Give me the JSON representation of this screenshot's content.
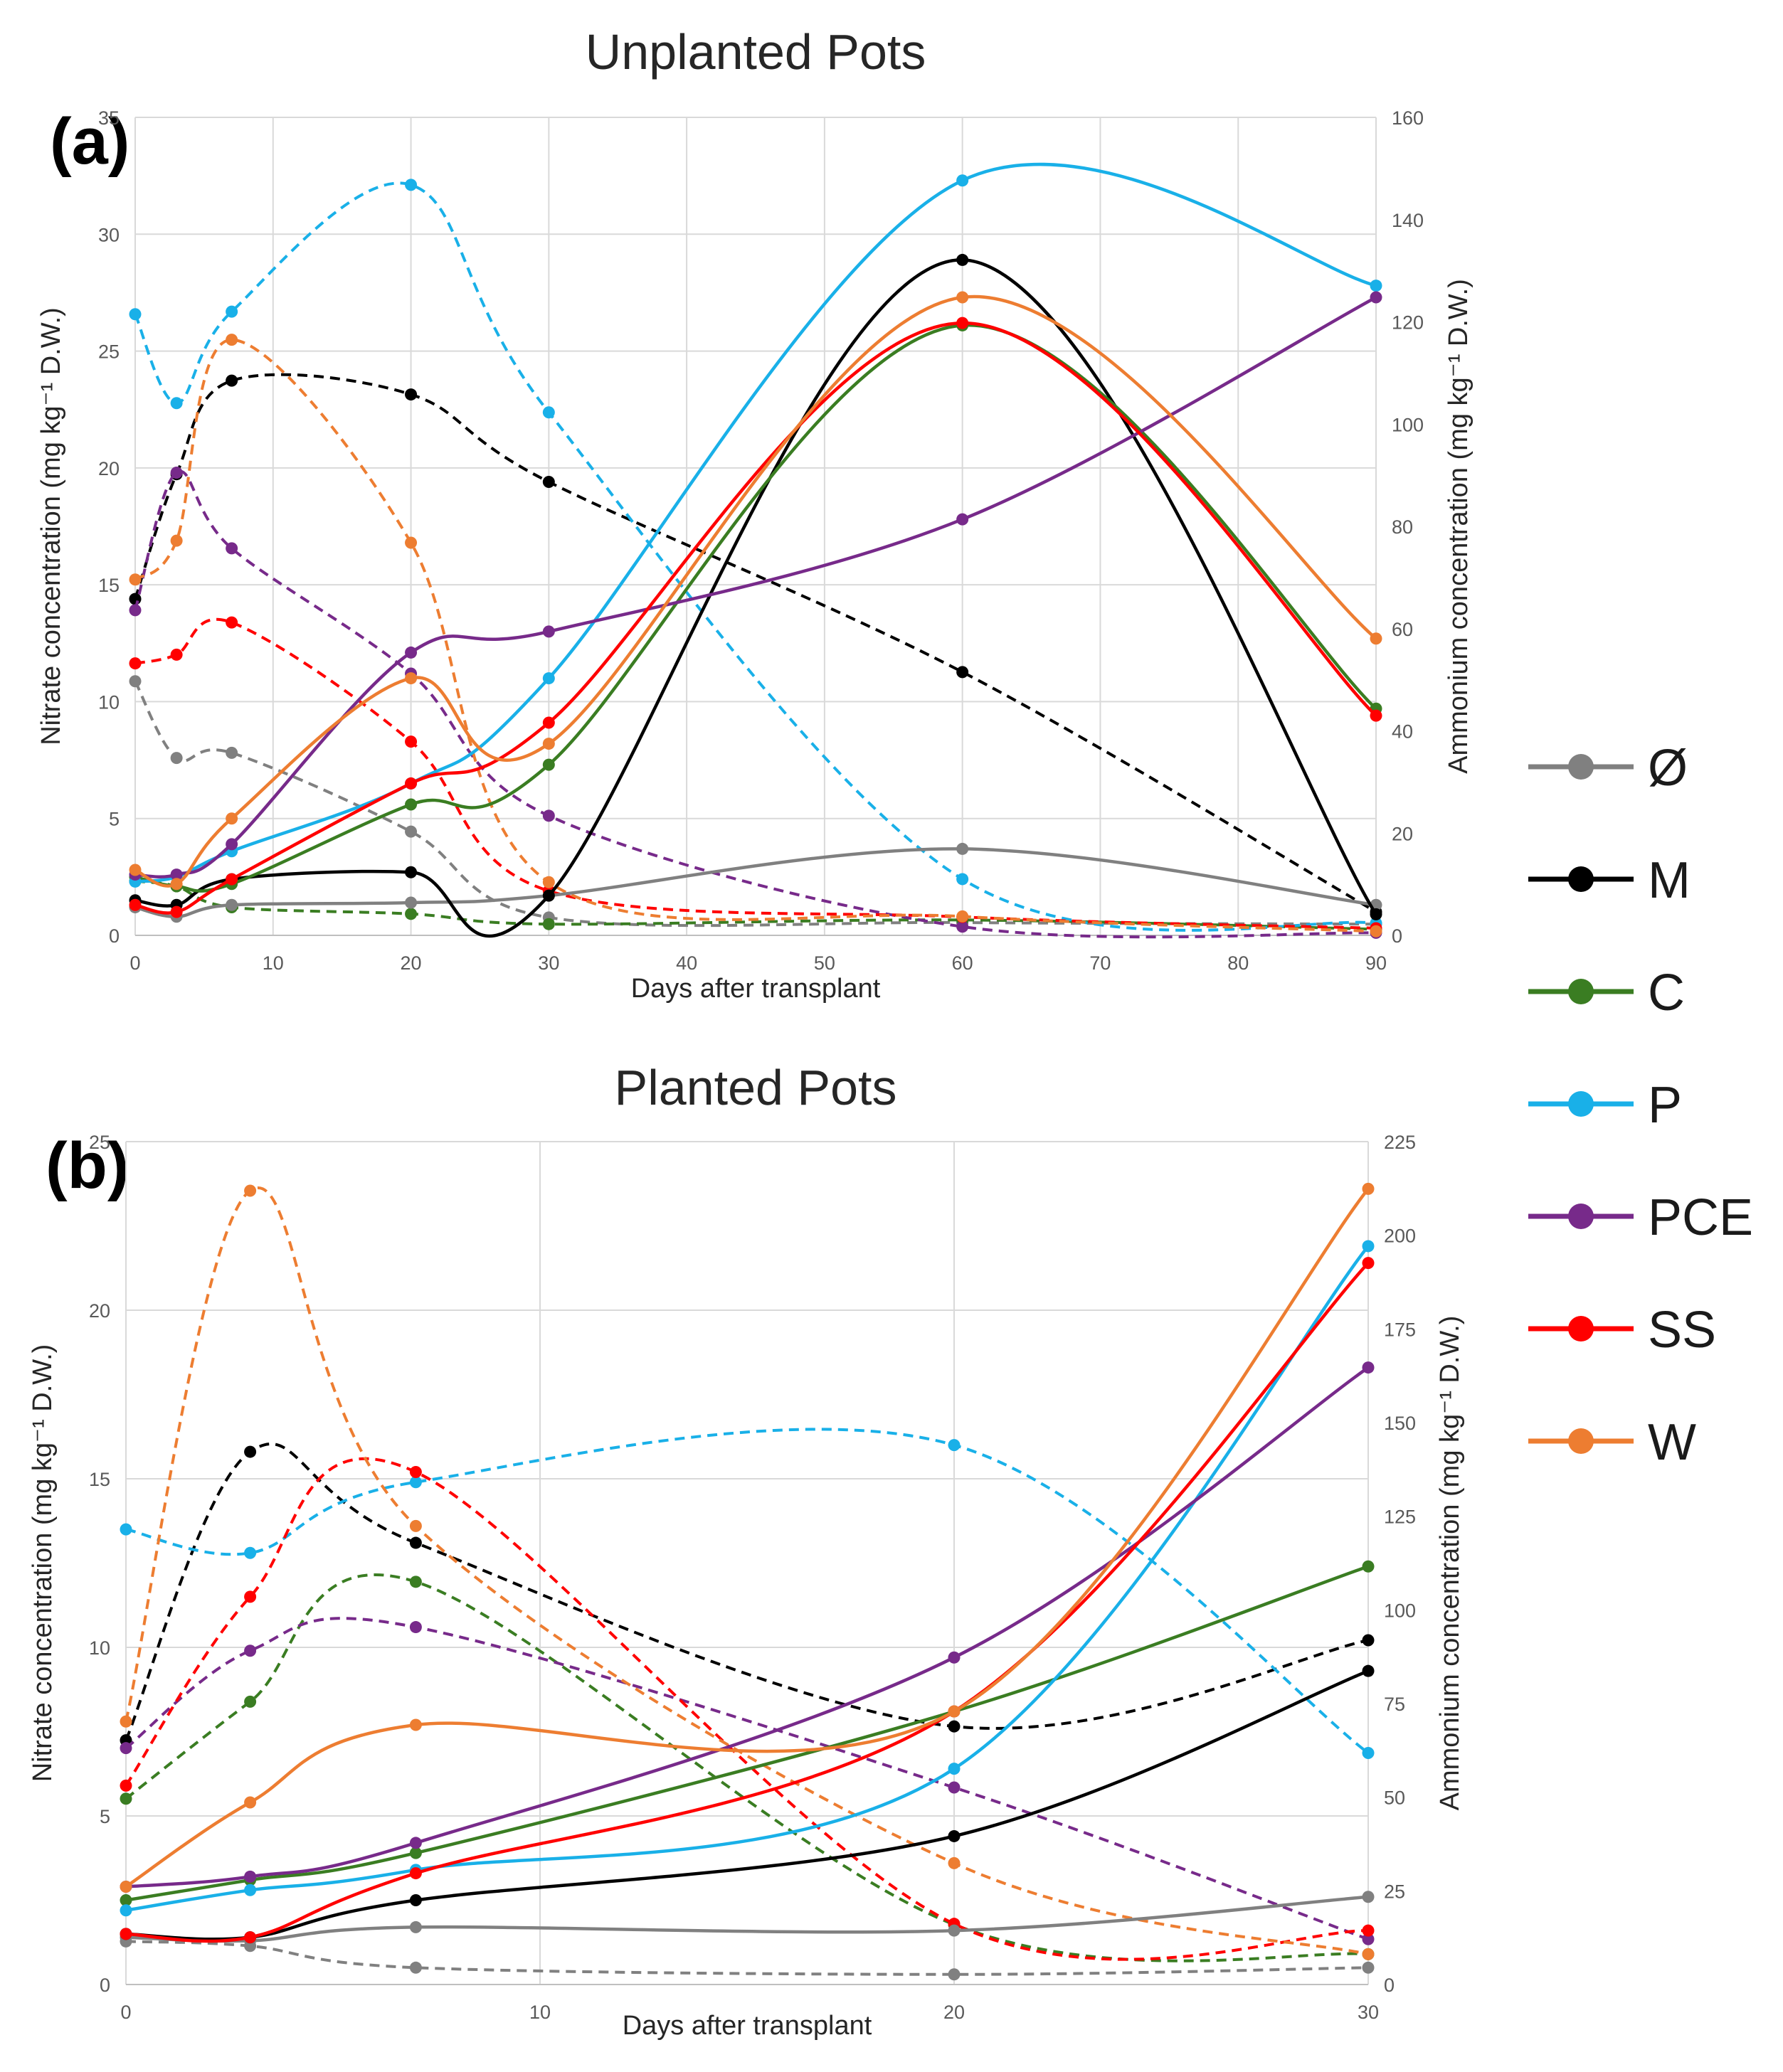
{
  "chart_data": [
    {
      "type": "line",
      "panel_label": "(a)",
      "title": "Unplanted Pots",
      "xlabel": "Days after transplant",
      "ylabel_left": "Nitrate concentration (mg kg⁻¹ D.W.)",
      "ylabel_right": "Ammonium concentration (mg kg⁻¹ D.W.)",
      "x": [
        0,
        3,
        7,
        20,
        30,
        60,
        90
      ],
      "xlim": [
        0,
        90
      ],
      "xticks": [
        0,
        10,
        20,
        30,
        40,
        50,
        60,
        70,
        80,
        90
      ],
      "ylim_left": [
        0,
        35
      ],
      "yticks_left": [
        0,
        5,
        10,
        15,
        20,
        25,
        30,
        35
      ],
      "ylim_right": [
        0,
        160
      ],
      "yticks_right": [
        0,
        20,
        40,
        60,
        80,
        100,
        120,
        140,
        160
      ],
      "grid": true,
      "series": [
        {
          "name": "Ø",
          "color": "#808080",
          "nitrate": [
            1.2,
            0.8,
            1.3,
            1.4,
            1.7,
            3.7,
            1.3
          ],
          "ammonium": [
            49.7,
            34.7,
            35.7,
            20.3,
            3.5,
            2.5,
            2.2
          ]
        },
        {
          "name": "M",
          "color": "#000000",
          "nitrate": [
            1.5,
            1.3,
            2.4,
            2.7,
            1.7,
            28.9,
            0.9
          ],
          "ammonium": [
            65.8,
            90.2,
            108.5,
            105.8,
            88.7,
            51.5,
            4.6
          ]
        },
        {
          "name": "C",
          "color": "#3a7d22",
          "nitrate": [
            2.5,
            2.1,
            2.2,
            5.6,
            7.3,
            26.1,
            9.7
          ],
          "ammonium": [
            10.6,
            9.6,
            5.5,
            4.2,
            2.2,
            3.0,
            1.2
          ]
        },
        {
          "name": "P",
          "color": "#19b0e8",
          "nitrate": [
            2.3,
            2.5,
            3.6,
            6.5,
            11.0,
            32.3,
            27.8
          ],
          "ammonium": [
            121.5,
            104.1,
            122.0,
            146.8,
            102.3,
            11.0,
            2.4
          ]
        },
        {
          "name": "PCE",
          "color": "#772a8a",
          "nitrate": [
            2.6,
            2.6,
            3.9,
            12.1,
            13.0,
            17.8,
            27.3
          ],
          "ammonium": [
            63.6,
            90.5,
            75.7,
            51.2,
            23.4,
            1.7,
            0.5
          ]
        },
        {
          "name": "SS",
          "color": "#ff0000",
          "nitrate": [
            1.3,
            1.0,
            2.4,
            6.5,
            9.1,
            26.2,
            9.4
          ],
          "ammonium": [
            53.2,
            54.9,
            61.2,
            37.9,
            8.7,
            3.6,
            1.4
          ]
        },
        {
          "name": "W",
          "color": "#ed7d31",
          "nitrate": [
            2.8,
            2.2,
            5.0,
            11.0,
            8.2,
            27.3,
            12.7
          ],
          "ammonium": [
            69.6,
            77.2,
            116.5,
            76.8,
            10.4,
            3.7,
            0.8
          ]
        }
      ]
    },
    {
      "type": "line",
      "panel_label": "(b)",
      "title": "Planted Pots",
      "xlabel": "Days after transplant",
      "ylabel_left": "Nitrate concentration (mg kg⁻¹ D.W.)",
      "ylabel_right": "Ammonium concentration (mg kg⁻¹ D.W.)",
      "x": [
        0,
        3,
        7,
        20,
        30
      ],
      "xlim": [
        0,
        30
      ],
      "xticks": [
        0,
        10,
        20,
        30
      ],
      "ylim_left": [
        0,
        25
      ],
      "yticks_left": [
        0,
        5,
        10,
        15,
        20,
        25
      ],
      "ylim_right": [
        0,
        225
      ],
      "yticks_right": [
        0,
        25,
        50,
        75,
        100,
        125,
        150,
        175,
        200,
        225
      ],
      "grid": true,
      "series": [
        {
          "name": "Ø",
          "color": "#808080",
          "nitrate": [
            1.4,
            1.3,
            1.7,
            1.6,
            2.6
          ],
          "ammonium": [
            11.5,
            10.3,
            4.5,
            2.7,
            4.5
          ]
        },
        {
          "name": "M",
          "color": "#000000",
          "nitrate": [
            1.5,
            1.4,
            2.5,
            4.4,
            9.3
          ],
          "ammonium": [
            65.2,
            142.2,
            117.9,
            68.9,
            91.9
          ]
        },
        {
          "name": "C",
          "color": "#3a7d22",
          "nitrate": [
            2.5,
            3.1,
            3.9,
            8.1,
            12.4
          ],
          "ammonium": [
            49.6,
            75.5,
            107.5,
            16.0,
            8.1
          ]
        },
        {
          "name": "P",
          "color": "#19b0e8",
          "nitrate": [
            2.2,
            2.8,
            3.4,
            6.4,
            21.9
          ],
          "ammonium": [
            121.5,
            115.2,
            134.1,
            144.0,
            61.8
          ]
        },
        {
          "name": "PCE",
          "color": "#772a8a",
          "nitrate": [
            2.9,
            3.2,
            4.2,
            9.7,
            18.3
          ],
          "ammonium": [
            63.1,
            89.1,
            95.4,
            52.6,
            12.1
          ]
        },
        {
          "name": "SS",
          "color": "#ff0000",
          "nitrate": [
            1.5,
            1.4,
            3.3,
            8.1,
            21.4
          ],
          "ammonium": [
            53.1,
            103.5,
            136.8,
            16.2,
            14.4
          ]
        },
        {
          "name": "W",
          "color": "#ed7d31",
          "nitrate": [
            2.9,
            5.4,
            7.7,
            8.1,
            23.6
          ],
          "ammonium": [
            70.2,
            211.9,
            122.4,
            32.4,
            8.1
          ]
        }
      ]
    }
  ],
  "legend": [
    {
      "label": "Ø",
      "color": "#808080"
    },
    {
      "label": "M",
      "color": "#000000"
    },
    {
      "label": "C",
      "color": "#3a7d22"
    },
    {
      "label": "P",
      "color": "#19b0e8"
    },
    {
      "label": "PCE",
      "color": "#772a8a"
    },
    {
      "label": "SS",
      "color": "#ff0000"
    },
    {
      "label": "W",
      "color": "#ed7d31"
    }
  ]
}
